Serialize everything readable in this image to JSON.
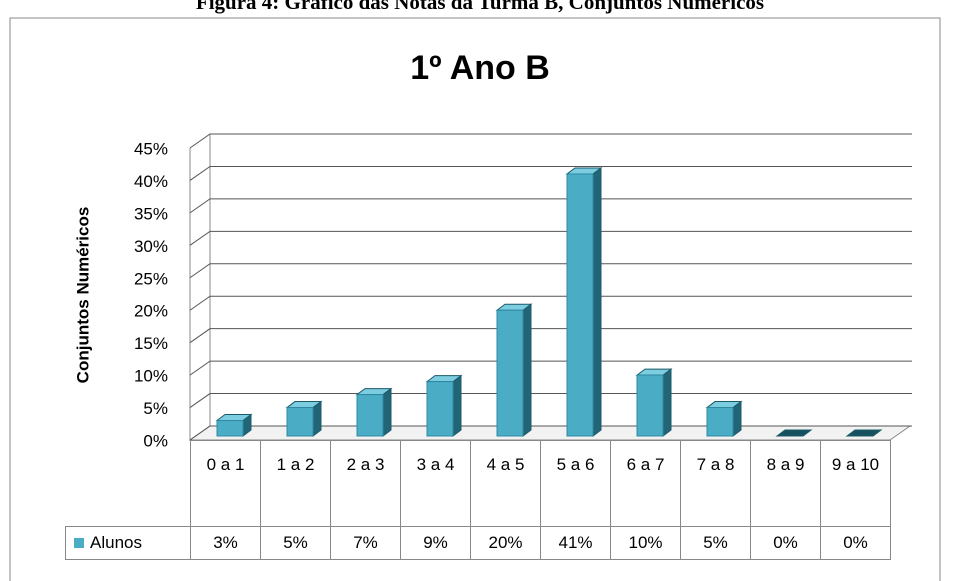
{
  "caption": "Figura 4: Gráfico das Notas da Turma B, Conjuntos Numéricos",
  "chart_data": {
    "type": "bar3d",
    "title": "1º Ano B",
    "y_label": "Conjuntos Numéricos",
    "categories": [
      "0 a 1",
      "1 a 2",
      "2 a 3",
      "3 a 4",
      "4 a 5",
      "5 a 6",
      "6 a 7",
      "7 a 8",
      "8 a 9",
      "9 a 10"
    ],
    "series": [
      {
        "name": "Alunos",
        "color": "#4bacc6",
        "values": [
          3,
          5,
          7,
          9,
          20,
          41,
          10,
          5,
          0,
          0
        ],
        "value_labels": [
          "3%",
          "5%",
          "7%",
          "9%",
          "20%",
          "41%",
          "10%",
          "5%",
          "0%",
          "0%"
        ]
      }
    ],
    "ylim": [
      0,
      45
    ],
    "yticks": [
      {
        "value": 0,
        "label": "0%"
      },
      {
        "value": 5,
        "label": "5%"
      },
      {
        "value": 10,
        "label": "10%"
      },
      {
        "value": 15,
        "label": "15%"
      },
      {
        "value": 20,
        "label": "20%"
      },
      {
        "value": 25,
        "label": "25%"
      },
      {
        "value": 30,
        "label": "30%"
      },
      {
        "value": 35,
        "label": "35%"
      },
      {
        "value": 40,
        "label": "40%"
      },
      {
        "value": 45,
        "label": "45%"
      }
    ],
    "grid": true,
    "legend": "table"
  }
}
